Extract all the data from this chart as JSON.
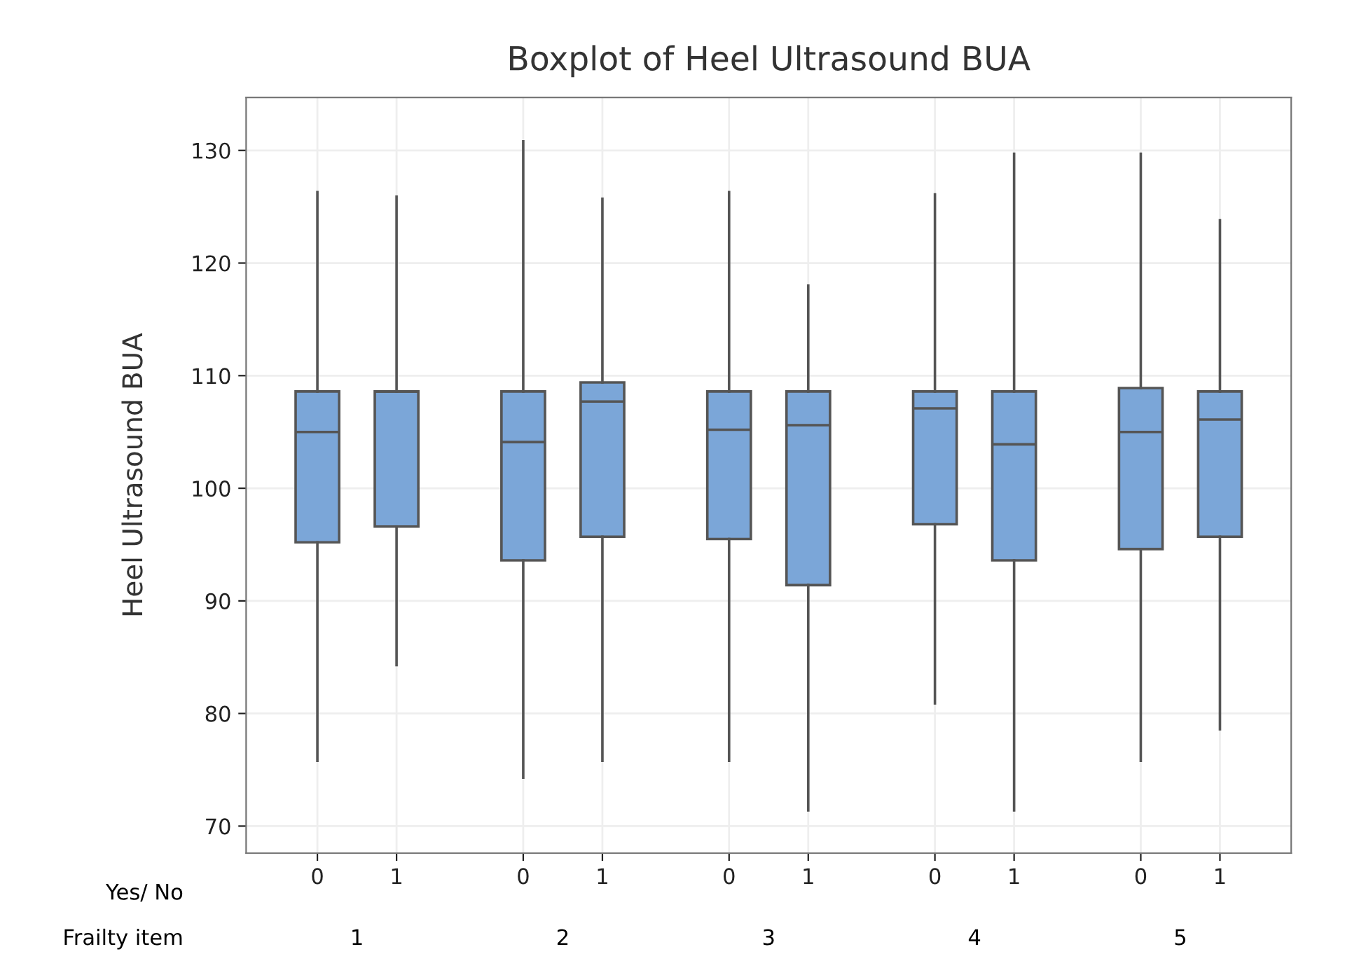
{
  "chart_data": {
    "type": "box",
    "title": "Boxplot of Heel Ultrasound BUA",
    "ylabel": "Heel Ultrasound BUA",
    "categories": [
      "0",
      "1",
      "0",
      "1",
      "0",
      "1",
      "0",
      "1",
      "0",
      "1"
    ],
    "annotations": [
      "Yes/ No",
      "Frailty item",
      "1",
      "2",
      "3",
      "4",
      "5"
    ],
    "color": "#7ba6d8",
    "boxes": [
      {
        "low": 75.8,
        "q1": 95.2,
        "median": 105.0,
        "q3": 108.6,
        "high": 126.3
      },
      {
        "low": 84.3,
        "q1": 96.6,
        "median": 108.6,
        "q3": 108.6,
        "high": 125.9
      },
      {
        "low": 74.3,
        "q1": 93.6,
        "median": 104.1,
        "q3": 108.6,
        "high": 130.8
      },
      {
        "low": 75.8,
        "q1": 95.7,
        "median": 107.7,
        "q3": 109.4,
        "high": 125.7
      },
      {
        "low": 75.8,
        "q1": 95.5,
        "median": 105.2,
        "q3": 108.6,
        "high": 126.3
      },
      {
        "low": 71.4,
        "q1": 91.4,
        "median": 105.6,
        "q3": 108.6,
        "high": 118.0
      },
      {
        "low": 80.9,
        "q1": 96.8,
        "median": 107.1,
        "q3": 108.6,
        "high": 126.1
      },
      {
        "low": 71.4,
        "q1": 93.6,
        "median": 103.9,
        "q3": 108.6,
        "high": 129.7
      },
      {
        "low": 75.8,
        "q1": 94.6,
        "median": 105.0,
        "q3": 108.9,
        "high": 129.7
      },
      {
        "low": 78.6,
        "q1": 95.7,
        "median": 106.1,
        "q3": 108.6,
        "high": 123.8
      }
    ],
    "ylim": [
      67.6,
      134.7
    ],
    "yticks": [
      70,
      80,
      90,
      100,
      110,
      120,
      130
    ],
    "grid": true
  }
}
